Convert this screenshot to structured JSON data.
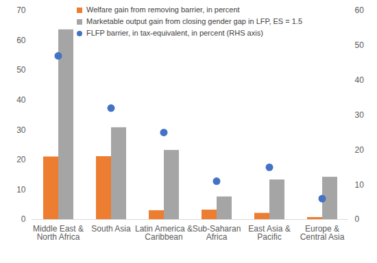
{
  "chart_data": {
    "type": "bar",
    "categories": [
      "Middle East & North Africa",
      "South Asia",
      "Latin America & Caribbean",
      "Sub-Saharan Africa",
      "East Asia & Pacific",
      "Europe & Central Asia"
    ],
    "series": [
      {
        "name": "Welfare gain from removing barrier, in percent",
        "color": "#ed7d31",
        "type": "bar",
        "values": [
          21,
          21.1,
          3,
          3.2,
          2.1,
          0.7
        ]
      },
      {
        "name": "Marketable output gain from closing gender gap in LFP, ES = 1.5",
        "color": "#a5a5a5",
        "type": "bar",
        "values": [
          63.6,
          30.8,
          23.2,
          7.6,
          13.3,
          14.2
        ]
      },
      {
        "name": "FLFP barrier, in tax-equivalent, in percent (RHS axis)",
        "color": "#4472c4",
        "type": "scatter",
        "marker": "circle",
        "axis": "y2",
        "values": [
          47,
          32,
          25,
          11,
          15,
          6
        ]
      }
    ],
    "ylim": [
      0,
      70
    ],
    "yticks": [
      0,
      10,
      20,
      30,
      40,
      50,
      60,
      70
    ],
    "y2lim": [
      0,
      60
    ],
    "y2ticks": [
      0,
      10,
      20,
      30,
      40,
      50,
      60
    ],
    "grid": false,
    "legend": "top-left"
  }
}
